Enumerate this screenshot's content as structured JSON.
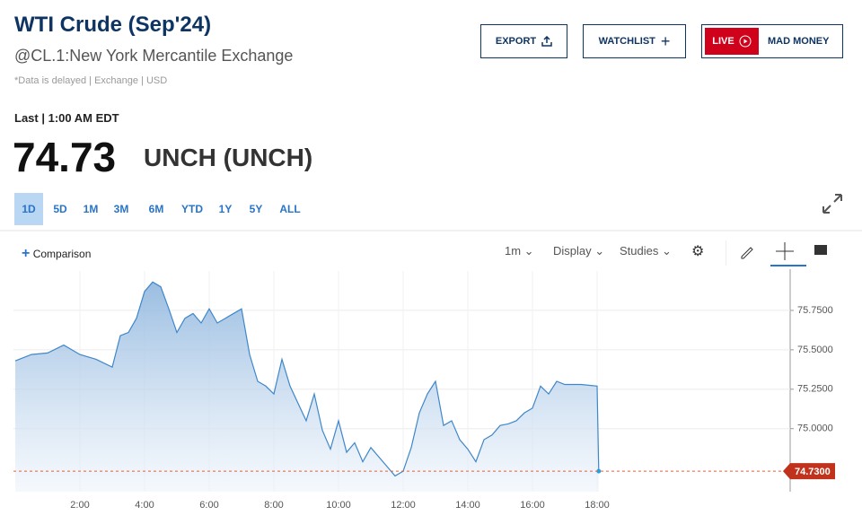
{
  "header": {
    "title": "WTI Crude (Sep'24)",
    "subtitle": "@CL.1:New York Mercantile Exchange",
    "note": "*Data is delayed | Exchange | USD"
  },
  "buttons": [
    "EXPORT",
    "WATCHLIST",
    "LIVE",
    "MAD MONEY"
  ],
  "quote": {
    "last_label": "Last | 1:00 AM EDT",
    "price": 74.73,
    "change": "UNCH (UNCH)"
  },
  "ranges": [
    "1D",
    "5D",
    "1M",
    "3M",
    "6M",
    "YTD",
    "1Y",
    "5Y",
    "ALL"
  ],
  "toolbar": {
    "comparison": "Comparison",
    "interval": "1m",
    "display": "Display",
    "studies": "Studies"
  },
  "chart_data": {
    "type": "area",
    "color": "#3f87c9",
    "grid": true,
    "x": [
      0,
      0.5,
      1,
      1.5,
      2,
      2.5,
      3,
      3.25,
      3.5,
      3.75,
      4,
      4.25,
      4.5,
      4.75,
      5,
      5.25,
      5.5,
      5.75,
      6,
      6.25,
      6.5,
      6.75,
      7,
      7.25,
      7.5,
      7.75,
      8,
      8.25,
      8.5,
      8.75,
      9,
      9.25,
      9.5,
      9.75,
      10,
      10.25,
      10.5,
      10.75,
      11,
      11.25,
      11.5,
      11.75,
      12,
      12.25,
      12.5,
      12.75,
      13,
      13.25,
      13.5,
      13.75,
      14,
      14.25,
      14.5,
      14.75,
      15,
      15.25,
      15.5,
      15.75,
      16,
      16.25,
      16.5,
      16.75,
      17,
      17.5,
      18,
      18.05
    ],
    "values": [
      75.43,
      75.47,
      75.48,
      75.53,
      75.47,
      75.44,
      75.39,
      75.59,
      75.61,
      75.7,
      75.87,
      75.93,
      75.9,
      75.76,
      75.61,
      75.7,
      75.73,
      75.67,
      75.76,
      75.67,
      75.7,
      75.73,
      75.76,
      75.47,
      75.3,
      75.27,
      75.22,
      75.44,
      75.27,
      75.16,
      75.05,
      75.22,
      74.99,
      74.87,
      75.05,
      74.85,
      74.91,
      74.79,
      74.88,
      74.82,
      74.76,
      74.7,
      74.73,
      74.88,
      75.1,
      75.22,
      75.3,
      75.02,
      75.05,
      74.93,
      74.87,
      74.79,
      74.93,
      74.96,
      75.02,
      75.03,
      75.05,
      75.1,
      75.13,
      75.27,
      75.22,
      75.3,
      75.28,
      75.28,
      75.27,
      74.73
    ],
    "xlim": [
      0,
      24
    ],
    "ylim": [
      74.6,
      76.0
    ],
    "xticks": [
      {
        "value": 2,
        "label": "2:00"
      },
      {
        "value": 4,
        "label": "4:00"
      },
      {
        "value": 6,
        "label": "6:00"
      },
      {
        "value": 8,
        "label": "8:00"
      },
      {
        "value": 10,
        "label": "10:00"
      },
      {
        "value": 12,
        "label": "12:00"
      },
      {
        "value": 14,
        "label": "14:00"
      },
      {
        "value": 16,
        "label": "16:00"
      },
      {
        "value": 18,
        "label": "18:00"
      }
    ],
    "yticks": [
      {
        "value": 75,
        "label": "75.0000"
      },
      {
        "value": 75.25,
        "label": "75.2500"
      },
      {
        "value": 75.5,
        "label": "75.5000"
      },
      {
        "value": 75.75,
        "label": "75.7500"
      }
    ],
    "last_price": {
      "value": 74.73,
      "label": "74.7300"
    }
  }
}
